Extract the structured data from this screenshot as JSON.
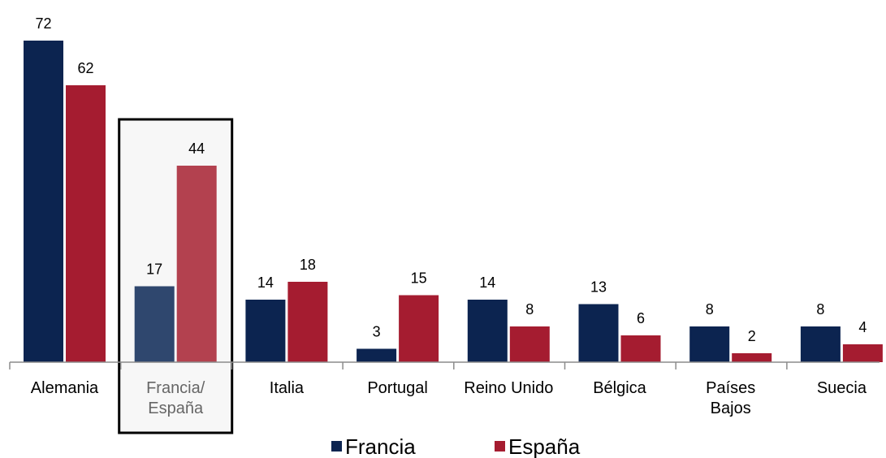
{
  "chart_data": {
    "type": "bar",
    "categories": [
      [
        "Alemania"
      ],
      [
        "Francia/",
        "España"
      ],
      [
        "Italia"
      ],
      [
        "Portugal"
      ],
      [
        "Reino Unido"
      ],
      [
        "Bélgica"
      ],
      [
        "Países",
        "Bajos"
      ],
      [
        "Suecia"
      ]
    ],
    "series": [
      {
        "name": "Francia",
        "values": [
          72,
          17,
          14,
          3,
          14,
          13,
          8,
          8
        ]
      },
      {
        "name": "España",
        "values": [
          62,
          44,
          18,
          15,
          8,
          6,
          2,
          4
        ]
      }
    ],
    "highlighted_category_index": 1,
    "ylim": [
      0,
      72
    ],
    "grid": false,
    "legend_position": "bottom-center",
    "colors": {
      "Francia": "#0c2450",
      "España": "#a51c30",
      "Francia_highlight": "#2f476e",
      "España_highlight": "#b3414f",
      "highlight_box_fill": "#f7f7f7",
      "highlight_box_border": "#000000",
      "highlight_text": "#666666",
      "axis": "#8c8c8c"
    }
  }
}
